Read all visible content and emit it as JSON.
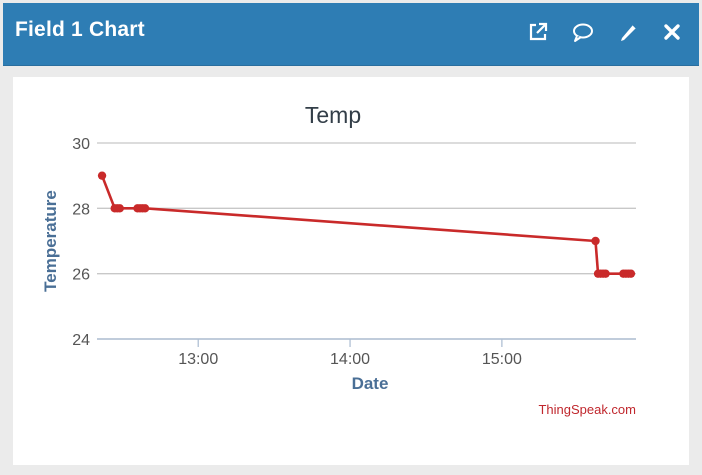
{
  "header": {
    "title": "Field 1 Chart",
    "icons": [
      "external-link-icon",
      "comment-icon",
      "pencil-icon",
      "close-icon"
    ]
  },
  "colors": {
    "header_bg": "#2e7db4",
    "line": "#c92a2a",
    "axis_title": "#4a6f96",
    "credit": "#c0272d"
  },
  "chart_data": {
    "type": "line",
    "title": "Temp",
    "xlabel": "Date",
    "ylabel": "Temperature",
    "ylim": [
      24,
      30
    ],
    "yticks": [
      "24",
      "26",
      "28",
      "30"
    ],
    "xlim": [
      "12:20",
      "15:53"
    ],
    "xticks": [
      "13:00",
      "14:00",
      "15:00"
    ],
    "grid": true,
    "series": [
      {
        "x": [
          "12:22",
          "12:27",
          "12:28",
          "12:29",
          "12:36",
          "12:37",
          "12:38",
          "12:39",
          "15:37",
          "15:38",
          "15:39",
          "15:40",
          "15:41",
          "15:48",
          "15:49",
          "15:50",
          "15:51"
        ],
        "y": [
          29,
          28,
          28,
          28,
          28,
          28,
          28,
          28,
          27,
          26,
          26,
          26,
          26,
          26,
          26,
          26,
          26
        ]
      }
    ],
    "credit": "ThingSpeak.com"
  }
}
